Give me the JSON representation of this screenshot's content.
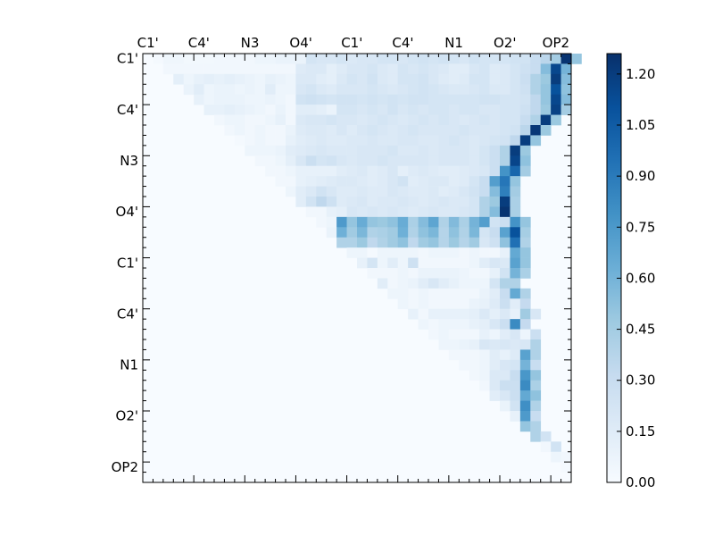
{
  "chart_data": {
    "type": "heatmap",
    "title": "",
    "xlabel": "",
    "ylabel": "",
    "x_tick_labels": [
      "C1'",
      "C4'",
      "N3",
      "O4'",
      "C1'",
      "C4'",
      "N1",
      "O2'",
      "OP2"
    ],
    "y_tick_labels": [
      "C1'",
      "C4'",
      "N3",
      "O4'",
      "C1'",
      "C4'",
      "N1",
      "O2'",
      "OP2"
    ],
    "n_rows": 42,
    "n_cols": 42,
    "colorbar": {
      "min": 0.0,
      "max": 1.26,
      "tick_labels": [
        "0.00",
        "0.15",
        "0.30",
        "0.45",
        "0.60",
        "0.75",
        "0.90",
        "1.05",
        "1.20"
      ],
      "tick_values": [
        0.0,
        0.15,
        0.3,
        0.45,
        0.6,
        0.75,
        0.9,
        1.05,
        1.2
      ],
      "colormap": "Blues",
      "color_stops": [
        "#f7fbff",
        "#deebf7",
        "#c6dbef",
        "#9ecae1",
        "#6baed6",
        "#4292c6",
        "#2171b5",
        "#08519c",
        "#08306b"
      ]
    },
    "lower_triangle_value": 0.0,
    "rows": [
      {
        "row": 0,
        "start_col": 1,
        "values": [
          0.02,
          0.05,
          0.05,
          0.03,
          0.03,
          0.03,
          0.04,
          0.04,
          0.04,
          0.04,
          0.06,
          0.06,
          0.08,
          0.08,
          0.08,
          0.22,
          0.2,
          0.2,
          0.22,
          0.18,
          0.2,
          0.2,
          0.22,
          0.22,
          0.2,
          0.22,
          0.24,
          0.22,
          0.24,
          0.22,
          0.2,
          0.24,
          0.22,
          0.22,
          0.22,
          0.24,
          0.24,
          0.3,
          0.36,
          0.45,
          1.24,
          0.5
        ]
      },
      {
        "row": 1,
        "start_col": 2,
        "values": [
          0.04,
          0.04,
          0.04,
          0.04,
          0.04,
          0.04,
          0.04,
          0.04,
          0.04,
          0.04,
          0.04,
          0.04,
          0.04,
          0.16,
          0.18,
          0.18,
          0.12,
          0.16,
          0.2,
          0.2,
          0.22,
          0.18,
          0.16,
          0.22,
          0.2,
          0.22,
          0.2,
          0.18,
          0.14,
          0.14,
          0.2,
          0.22,
          0.16,
          0.18,
          0.22,
          0.26,
          0.3,
          0.55,
          1.15,
          0.6
        ]
      },
      {
        "row": 2,
        "start_col": 3,
        "values": [
          0.12,
          0.06,
          0.1,
          0.12,
          0.1,
          0.12,
          0.1,
          0.08,
          0.06,
          0.1,
          0.08,
          0.06,
          0.18,
          0.18,
          0.14,
          0.12,
          0.18,
          0.22,
          0.2,
          0.24,
          0.18,
          0.16,
          0.22,
          0.22,
          0.24,
          0.2,
          0.16,
          0.14,
          0.16,
          0.22,
          0.22,
          0.16,
          0.18,
          0.22,
          0.28,
          0.4,
          0.48,
          1.2,
          0.55
        ]
      },
      {
        "row": 3,
        "start_col": 4,
        "values": [
          0.08,
          0.14,
          0.06,
          0.08,
          0.08,
          0.06,
          0.08,
          0.06,
          0.14,
          0.06,
          0.06,
          0.2,
          0.22,
          0.18,
          0.16,
          0.2,
          0.2,
          0.2,
          0.22,
          0.2,
          0.18,
          0.2,
          0.22,
          0.24,
          0.22,
          0.2,
          0.18,
          0.18,
          0.2,
          0.22,
          0.18,
          0.18,
          0.22,
          0.26,
          0.4,
          0.5,
          1.1,
          0.52
        ]
      },
      {
        "row": 4,
        "start_col": 5,
        "values": [
          0.1,
          0.06,
          0.08,
          0.08,
          0.08,
          0.06,
          0.06,
          0.08,
          0.06,
          0.04,
          0.24,
          0.26,
          0.24,
          0.22,
          0.24,
          0.24,
          0.22,
          0.24,
          0.22,
          0.24,
          0.22,
          0.24,
          0.24,
          0.22,
          0.22,
          0.22,
          0.22,
          0.22,
          0.24,
          0.24,
          0.22,
          0.22,
          0.24,
          0.34,
          0.5,
          1.15,
          0.55
        ]
      },
      {
        "row": 5,
        "start_col": 6,
        "values": [
          0.1,
          0.1,
          0.12,
          0.1,
          0.08,
          0.06,
          0.04,
          0.08,
          0.04,
          0.14,
          0.14,
          0.12,
          0.08,
          0.22,
          0.22,
          0.2,
          0.22,
          0.2,
          0.24,
          0.2,
          0.22,
          0.2,
          0.22,
          0.22,
          0.2,
          0.22,
          0.22,
          0.2,
          0.2,
          0.22,
          0.22,
          0.26,
          0.34,
          0.48,
          1.18,
          0.45
        ]
      },
      {
        "row": 6,
        "start_col": 7,
        "values": [
          0.04,
          0.06,
          0.06,
          0.04,
          0.04,
          0.06,
          0.1,
          0.04,
          0.18,
          0.2,
          0.2,
          0.22,
          0.2,
          0.2,
          0.18,
          0.2,
          0.22,
          0.2,
          0.18,
          0.2,
          0.22,
          0.2,
          0.22,
          0.2,
          0.18,
          0.2,
          0.22,
          0.2,
          0.22,
          0.22,
          0.3,
          0.4,
          1.2,
          0.48
        ]
      },
      {
        "row": 7,
        "start_col": 8,
        "values": [
          0.04,
          0.06,
          0.04,
          0.06,
          0.04,
          0.04,
          0.08,
          0.16,
          0.18,
          0.18,
          0.16,
          0.2,
          0.16,
          0.2,
          0.22,
          0.2,
          0.18,
          0.2,
          0.22,
          0.2,
          0.2,
          0.2,
          0.2,
          0.22,
          0.2,
          0.2,
          0.2,
          0.22,
          0.24,
          0.36,
          1.22,
          0.48
        ]
      },
      {
        "row": 8,
        "start_col": 9,
        "values": [
          0.02,
          0.04,
          0.06,
          0.04,
          0.04,
          0.1,
          0.14,
          0.16,
          0.18,
          0.16,
          0.16,
          0.18,
          0.18,
          0.2,
          0.18,
          0.18,
          0.2,
          0.2,
          0.18,
          0.18,
          0.2,
          0.22,
          0.2,
          0.18,
          0.2,
          0.22,
          0.24,
          0.34,
          1.2,
          0.5
        ]
      },
      {
        "row": 9,
        "start_col": 10,
        "values": [
          0.06,
          0.06,
          0.06,
          0.08,
          0.14,
          0.16,
          0.18,
          0.2,
          0.18,
          0.18,
          0.18,
          0.2,
          0.2,
          0.2,
          0.22,
          0.18,
          0.18,
          0.2,
          0.18,
          0.2,
          0.2,
          0.2,
          0.18,
          0.22,
          0.28,
          0.4,
          1.2,
          0.48
        ]
      },
      {
        "row": 10,
        "start_col": 11,
        "values": [
          0.04,
          0.04,
          0.06,
          0.12,
          0.2,
          0.28,
          0.22,
          0.24,
          0.2,
          0.18,
          0.2,
          0.2,
          0.22,
          0.2,
          0.2,
          0.2,
          0.2,
          0.18,
          0.2,
          0.2,
          0.2,
          0.18,
          0.22,
          0.28,
          0.4,
          1.16,
          0.52
        ]
      },
      {
        "row": 11,
        "start_col": 12,
        "values": [
          0.04,
          0.04,
          0.06,
          0.1,
          0.1,
          0.1,
          0.1,
          0.14,
          0.16,
          0.18,
          0.14,
          0.16,
          0.2,
          0.12,
          0.16,
          0.18,
          0.16,
          0.14,
          0.14,
          0.16,
          0.18,
          0.2,
          0.28,
          0.78,
          1.0,
          0.45
        ]
      },
      {
        "row": 12,
        "start_col": 13,
        "values": [
          0.04,
          0.04,
          0.1,
          0.12,
          0.14,
          0.16,
          0.18,
          0.18,
          0.16,
          0.14,
          0.16,
          0.2,
          0.24,
          0.14,
          0.16,
          0.18,
          0.18,
          0.14,
          0.16,
          0.22,
          0.3,
          0.72,
          0.92,
          0.5
        ]
      },
      {
        "row": 13,
        "start_col": 14,
        "values": [
          0.06,
          0.14,
          0.18,
          0.24,
          0.2,
          0.16,
          0.16,
          0.18,
          0.16,
          0.16,
          0.2,
          0.18,
          0.16,
          0.16,
          0.18,
          0.14,
          0.16,
          0.2,
          0.24,
          0.3,
          0.55,
          0.88,
          0.45
        ]
      },
      {
        "row": 14,
        "start_col": 15,
        "values": [
          0.14,
          0.24,
          0.34,
          0.26,
          0.16,
          0.18,
          0.2,
          0.16,
          0.18,
          0.18,
          0.2,
          0.18,
          0.16,
          0.18,
          0.2,
          0.18,
          0.18,
          0.22,
          0.4,
          0.48,
          1.2,
          0.42
        ]
      },
      {
        "row": 15,
        "start_col": 16,
        "values": [
          0.04,
          0.04,
          0.1,
          0.12,
          0.2,
          0.18,
          0.2,
          0.18,
          0.2,
          0.18,
          0.16,
          0.18,
          0.2,
          0.18,
          0.18,
          0.2,
          0.22,
          0.4,
          0.55,
          1.24,
          0.42
        ]
      },
      {
        "row": 16,
        "start_col": 17,
        "values": [
          0.04,
          0.06,
          0.74,
          0.5,
          0.64,
          0.5,
          0.48,
          0.52,
          0.64,
          0.42,
          0.55,
          0.68,
          0.4,
          0.56,
          0.42,
          0.6,
          0.72,
          0.24,
          0.28,
          0.78,
          0.5
        ]
      },
      {
        "row": 17,
        "start_col": 18,
        "values": [
          0.08,
          0.62,
          0.46,
          0.58,
          0.4,
          0.42,
          0.46,
          0.62,
          0.4,
          0.52,
          0.58,
          0.38,
          0.52,
          0.4,
          0.58,
          0.22,
          0.3,
          0.7,
          1.1,
          0.44
        ]
      },
      {
        "row": 18,
        "start_col": 19,
        "values": [
          0.4,
          0.4,
          0.48,
          0.34,
          0.4,
          0.46,
          0.52,
          0.34,
          0.46,
          0.5,
          0.38,
          0.48,
          0.38,
          0.46,
          0.2,
          0.26,
          0.52,
          0.95,
          0.4
        ]
      },
      {
        "row": 19,
        "start_col": 20,
        "values": [
          0.06,
          0.06,
          0.02,
          0.06,
          0.06,
          0.06,
          0.06,
          0.04,
          0.06,
          0.06,
          0.06,
          0.04,
          0.06,
          0.04,
          0.04,
          0.1,
          0.66,
          0.5
        ]
      },
      {
        "row": 20,
        "start_col": 21,
        "values": [
          0.1,
          0.22,
          0.06,
          0.14,
          0.06,
          0.26,
          0.04,
          0.04,
          0.04,
          0.04,
          0.04,
          0.06,
          0.14,
          0.2,
          0.18,
          0.7,
          0.5
        ]
      },
      {
        "row": 21,
        "start_col": 22,
        "values": [
          0.04,
          0.04,
          0.04,
          0.06,
          0.04,
          0.08,
          0.08,
          0.08,
          0.08,
          0.06,
          0.04,
          0.04,
          0.1,
          0.24,
          0.6,
          0.42
        ]
      },
      {
        "row": 22,
        "start_col": 23,
        "values": [
          0.14,
          0.04,
          0.06,
          0.08,
          0.14,
          0.2,
          0.14,
          0.1,
          0.06,
          0.06,
          0.06,
          0.22,
          0.4,
          0.4
        ]
      },
      {
        "row": 23,
        "start_col": 24,
        "values": [
          0.06,
          0.06,
          0.04,
          0.06,
          0.04,
          0.04,
          0.04,
          0.04,
          0.04,
          0.08,
          0.14,
          0.3,
          0.66,
          0.4
        ]
      },
      {
        "row": 24,
        "start_col": 25,
        "values": [
          0.06,
          0.04,
          0.06,
          0.04,
          0.04,
          0.04,
          0.04,
          0.08,
          0.1,
          0.16,
          0.28,
          0.14,
          0.32
        ]
      },
      {
        "row": 25,
        "start_col": 26,
        "values": [
          0.1,
          0.04,
          0.1,
          0.1,
          0.1,
          0.1,
          0.12,
          0.18,
          0.12,
          0.18,
          0.1,
          0.46,
          0.2
        ]
      },
      {
        "row": 26,
        "start_col": 27,
        "values": [
          0.06,
          0.04,
          0.06,
          0.06,
          0.06,
          0.1,
          0.12,
          0.2,
          0.28,
          0.82,
          0.32
        ]
      },
      {
        "row": 27,
        "start_col": 28,
        "values": [
          0.04,
          0.06,
          0.04,
          0.04,
          0.04,
          0.1,
          0.06,
          0.14,
          0.2,
          0.06,
          0.28
        ]
      },
      {
        "row": 28,
        "start_col": 29,
        "values": [
          0.06,
          0.06,
          0.08,
          0.1,
          0.2,
          0.18,
          0.2,
          0.18,
          0.2,
          0.4
        ]
      },
      {
        "row": 29,
        "start_col": 30,
        "values": [
          0.04,
          0.04,
          0.04,
          0.06,
          0.14,
          0.1,
          0.16,
          0.7,
          0.4
        ]
      },
      {
        "row": 30,
        "start_col": 31,
        "values": [
          0.04,
          0.04,
          0.06,
          0.14,
          0.2,
          0.22,
          0.6,
          0.3
        ]
      },
      {
        "row": 31,
        "start_col": 32,
        "values": [
          0.04,
          0.06,
          0.18,
          0.18,
          0.3,
          0.76,
          0.5
        ]
      },
      {
        "row": 32,
        "start_col": 33,
        "values": [
          0.04,
          0.18,
          0.28,
          0.28,
          0.82,
          0.42
        ]
      },
      {
        "row": 33,
        "start_col": 34,
        "values": [
          0.14,
          0.2,
          0.28,
          0.66,
          0.52
        ]
      },
      {
        "row": 34,
        "start_col": 35,
        "values": [
          0.08,
          0.24,
          0.8,
          0.4
        ]
      },
      {
        "row": 35,
        "start_col": 36,
        "values": [
          0.1,
          0.74,
          0.3
        ]
      },
      {
        "row": 36,
        "start_col": 37,
        "values": [
          0.5,
          0.4
        ]
      },
      {
        "row": 37,
        "start_col": 38,
        "values": [
          0.4,
          0.24
        ]
      },
      {
        "row": 38,
        "start_col": 39,
        "values": [
          0.04,
          0.24
        ]
      },
      {
        "row": 39,
        "start_col": 40,
        "values": [
          0.06,
          0.04
        ]
      },
      {
        "row": 40,
        "start_col": 41,
        "values": [
          0.02
        ]
      }
    ]
  }
}
